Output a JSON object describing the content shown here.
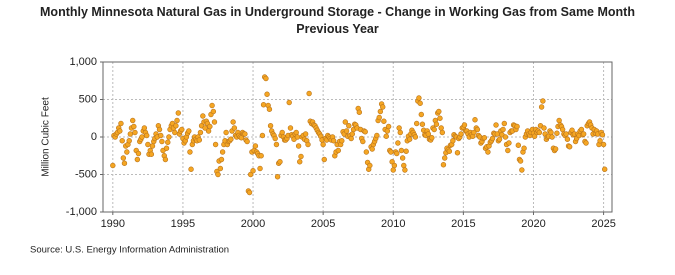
{
  "chart_data": {
    "type": "scatter",
    "title": "Monthly Minnesota Natural Gas in Underground Storage - Change in Working Gas from Same Month Previous Year",
    "y_label": "Million Cubic Feet",
    "source": "Source: U.S. Energy Information Administration",
    "xlim": [
      1989.3,
      2025.6
    ],
    "ylim": [
      -1000,
      1000
    ],
    "xticks": [
      1990,
      1995,
      2000,
      2005,
      2010,
      2015,
      2020,
      2025
    ],
    "yticks": [
      {
        "value": 1000,
        "label": "1,000"
      },
      500,
      0,
      -500,
      {
        "value": -1000,
        "label": "-1,000"
      }
    ],
    "grid": true,
    "color": "#f5a623",
    "edge_color": "#b9741c",
    "x": [
      1990,
      1990.08,
      1990.17,
      1990.25,
      1990.33,
      1990.42,
      1990.5,
      1990.58,
      1990.67,
      1990.75,
      1990.83,
      1990.92,
      1991,
      1991.08,
      1991.17,
      1991.25,
      1991.33,
      1991.42,
      1991.5,
      1991.58,
      1991.67,
      1991.75,
      1991.83,
      1991.92,
      1992,
      1992.08,
      1992.17,
      1992.25,
      1992.33,
      1992.42,
      1992.5,
      1992.58,
      1992.67,
      1992.75,
      1992.83,
      1992.92,
      1993,
      1993.08,
      1993.17,
      1993.25,
      1993.33,
      1993.42,
      1993.5,
      1993.58,
      1993.67,
      1993.75,
      1993.83,
      1993.92,
      1994,
      1994.08,
      1994.17,
      1994.25,
      1994.33,
      1994.42,
      1994.5,
      1994.58,
      1994.67,
      1994.75,
      1994.83,
      1994.92,
      1995,
      1995.08,
      1995.17,
      1995.25,
      1995.33,
      1995.42,
      1995.5,
      1995.58,
      1995.67,
      1995.75,
      1995.83,
      1995.92,
      1996,
      1996.08,
      1996.17,
      1996.25,
      1996.33,
      1996.42,
      1996.5,
      1996.58,
      1996.67,
      1996.75,
      1996.83,
      1996.92,
      1997,
      1997.08,
      1997.17,
      1997.25,
      1997.33,
      1997.42,
      1997.5,
      1997.58,
      1997.67,
      1997.75,
      1997.83,
      1997.92,
      1998,
      1998.08,
      1998.17,
      1998.25,
      1998.33,
      1998.42,
      1998.5,
      1998.58,
      1998.67,
      1998.75,
      1998.83,
      1998.92,
      1999,
      1999.08,
      1999.17,
      1999.25,
      1999.33,
      1999.42,
      1999.5,
      1999.58,
      1999.67,
      1999.75,
      1999.83,
      1999.92,
      2000,
      2000.08,
      2000.17,
      2000.25,
      2000.33,
      2000.42,
      2000.5,
      2000.58,
      2000.67,
      2000.75,
      2000.83,
      2000.92,
      2001,
      2001.08,
      2001.17,
      2001.25,
      2001.33,
      2001.42,
      2001.5,
      2001.58,
      2001.67,
      2001.75,
      2001.83,
      2001.92,
      2002,
      2002.08,
      2002.17,
      2002.25,
      2002.33,
      2002.42,
      2002.5,
      2002.58,
      2002.67,
      2002.75,
      2002.83,
      2002.92,
      2003,
      2003.08,
      2003.17,
      2003.25,
      2003.33,
      2003.42,
      2003.5,
      2003.58,
      2003.67,
      2003.75,
      2003.83,
      2003.92,
      2004,
      2004.08,
      2004.17,
      2004.25,
      2004.33,
      2004.42,
      2004.5,
      2004.58,
      2004.67,
      2004.75,
      2004.83,
      2004.92,
      2005,
      2005.08,
      2005.17,
      2005.25,
      2005.33,
      2005.42,
      2005.5,
      2005.58,
      2005.67,
      2005.75,
      2005.83,
      2005.92,
      2006,
      2006.08,
      2006.17,
      2006.25,
      2006.33,
      2006.42,
      2006.5,
      2006.58,
      2006.67,
      2006.75,
      2006.83,
      2006.92,
      2007,
      2007.08,
      2007.17,
      2007.25,
      2007.33,
      2007.42,
      2007.5,
      2007.58,
      2007.67,
      2007.75,
      2007.83,
      2007.92,
      2008,
      2008.08,
      2008.17,
      2008.25,
      2008.33,
      2008.42,
      2008.5,
      2008.58,
      2008.67,
      2008.75,
      2008.83,
      2008.92,
      2009,
      2009.08,
      2009.17,
      2009.25,
      2009.33,
      2009.42,
      2009.5,
      2009.58,
      2009.67,
      2009.75,
      2009.83,
      2009.92,
      2010,
      2010.08,
      2010.17,
      2010.25,
      2010.33,
      2010.42,
      2010.5,
      2010.58,
      2010.67,
      2010.75,
      2010.83,
      2010.92,
      2011,
      2011.08,
      2011.17,
      2011.25,
      2011.33,
      2011.42,
      2011.5,
      2011.58,
      2011.67,
      2011.75,
      2011.83,
      2011.92,
      2012,
      2012.08,
      2012.17,
      2012.25,
      2012.33,
      2012.42,
      2012.5,
      2012.58,
      2012.67,
      2012.75,
      2012.83,
      2012.92,
      2013,
      2013.08,
      2013.17,
      2013.25,
      2013.33,
      2013.42,
      2013.5,
      2013.58,
      2013.67,
      2013.75,
      2013.83,
      2013.92,
      2014,
      2014.08,
      2014.17,
      2014.25,
      2014.33,
      2014.42,
      2014.5,
      2014.58,
      2014.67,
      2014.75,
      2014.83,
      2014.92,
      2015,
      2015.08,
      2015.17,
      2015.25,
      2015.33,
      2015.42,
      2015.5,
      2015.58,
      2015.67,
      2015.75,
      2015.83,
      2015.92,
      2016,
      2016.08,
      2016.17,
      2016.25,
      2016.33,
      2016.42,
      2016.5,
      2016.58,
      2016.67,
      2016.75,
      2016.83,
      2016.92,
      2017,
      2017.08,
      2017.17,
      2017.25,
      2017.33,
      2017.42,
      2017.5,
      2017.58,
      2017.67,
      2017.75,
      2017.83,
      2017.92,
      2018,
      2018.08,
      2018.17,
      2018.25,
      2018.33,
      2018.42,
      2018.5,
      2018.58,
      2018.67,
      2018.75,
      2018.83,
      2018.92,
      2019,
      2019.08,
      2019.17,
      2019.25,
      2019.33,
      2019.42,
      2019.5,
      2019.58,
      2019.67,
      2019.75,
      2019.83,
      2019.92,
      2020,
      2020.08,
      2020.17,
      2020.25,
      2020.33,
      2020.42,
      2020.5,
      2020.58,
      2020.67,
      2020.75,
      2020.83,
      2020.92,
      2021,
      2021.08,
      2021.17,
      2021.25,
      2021.33,
      2021.42,
      2021.5,
      2021.58,
      2021.67,
      2021.75,
      2021.83,
      2021.92,
      2022,
      2022.08,
      2022.17,
      2022.25,
      2022.33,
      2022.42,
      2022.5,
      2022.58,
      2022.67,
      2022.75,
      2022.83,
      2022.92,
      2023,
      2023.08,
      2023.17,
      2023.25,
      2023.33,
      2023.42,
      2023.5,
      2023.58,
      2023.67,
      2023.75,
      2023.83,
      2023.92,
      2024,
      2024.08,
      2024.17,
      2024.25,
      2024.33,
      2024.42,
      2024.5,
      2024.58,
      2024.67,
      2024.75,
      2024.83,
      2024.92,
      2025,
      2025.08
    ],
    "values": [
      -380,
      20,
      0,
      40,
      60,
      120,
      80,
      180,
      -50,
      -280,
      -350,
      -120,
      -200,
      -100,
      -50,
      40,
      120,
      220,
      140,
      60,
      -180,
      -300,
      -220,
      -60,
      -30,
      0,
      80,
      120,
      60,
      20,
      -100,
      -230,
      -180,
      -230,
      -120,
      -60,
      -20,
      40,
      0,
      150,
      100,
      20,
      -60,
      -180,
      -250,
      -300,
      -150,
      -70,
      0,
      100,
      150,
      180,
      120,
      60,
      150,
      220,
      320,
      40,
      80,
      100,
      -20,
      -80,
      -50,
      0,
      50,
      80,
      -200,
      -430,
      -100,
      -50,
      0,
      -30,
      -50,
      0,
      -40,
      60,
      150,
      280,
      200,
      120,
      210,
      180,
      80,
      140,
      300,
      420,
      340,
      200,
      -100,
      -460,
      -500,
      -320,
      -420,
      -300,
      -200,
      -100,
      -50,
      60,
      -100,
      -60,
      -50,
      -30,
      80,
      200,
      120,
      20,
      0,
      60,
      20,
      0,
      -10,
      60,
      40,
      40,
      -40,
      -60,
      -720,
      -740,
      -500,
      -200,
      -450,
      -180,
      -120,
      -200,
      -220,
      -250,
      -420,
      -250,
      20,
      430,
      800,
      780,
      570,
      420,
      370,
      150,
      80,
      40,
      20,
      -20,
      -100,
      -530,
      -350,
      -330,
      20,
      60,
      0,
      -40,
      -40,
      -20,
      20,
      460,
      120,
      30,
      10,
      -30,
      40,
      60,
      0,
      -120,
      -330,
      -260,
      0,
      20,
      -30,
      40,
      -50,
      -100,
      580,
      210,
      180,
      200,
      160,
      150,
      120,
      90,
      60,
      40,
      10,
      -40,
      -100,
      -300,
      -20,
      -40,
      20,
      0,
      -20,
      -40,
      0,
      -50,
      -250,
      -200,
      -100,
      -180,
      -60,
      -100,
      -50,
      70,
      40,
      200,
      80,
      10,
      150,
      20,
      -20,
      40,
      100,
      170,
      160,
      120,
      380,
      330,
      100,
      -20,
      -60,
      80,
      70,
      -200,
      -340,
      -430,
      -380,
      -130,
      -160,
      -100,
      -60,
      -20,
      20,
      220,
      260,
      340,
      440,
      400,
      210,
      100,
      10,
      80,
      140,
      -180,
      -200,
      -330,
      -440,
      -380,
      -200,
      -220,
      -80,
      120,
      60,
      -180,
      -280,
      -380,
      -440,
      -190,
      -50,
      10,
      -30,
      40,
      90,
      60,
      30,
      0,
      180,
      480,
      520,
      450,
      300,
      170,
      90,
      30,
      20,
      80,
      40,
      -30,
      -40,
      -10,
      120,
      100,
      220,
      170,
      320,
      340,
      250,
      120,
      60,
      -370,
      -280,
      -210,
      -150,
      -170,
      -190,
      -110,
      -100,
      -50,
      30,
      10,
      0,
      -210,
      -20,
      0,
      40,
      120,
      130,
      160,
      80,
      80,
      40,
      0,
      60,
      30,
      10,
      60,
      230,
      120,
      100,
      20,
      0,
      -80,
      -60,
      -20,
      -10,
      -150,
      -130,
      -200,
      -120,
      -70,
      -50,
      -20,
      50,
      40,
      160,
      40,
      -50,
      -30,
      80,
      30,
      100,
      180,
      0,
      -100,
      -180,
      -80,
      60,
      80,
      80,
      160,
      150,
      100,
      140,
      -110,
      -300,
      -320,
      -440,
      -200,
      -150,
      0,
      40,
      80,
      40,
      20,
      60,
      100,
      50,
      10,
      100,
      60,
      80,
      60,
      150,
      400,
      480,
      120,
      40,
      -30,
      0,
      10,
      80,
      60,
      0,
      -150,
      -180,
      -160,
      50,
      140,
      220,
      160,
      140,
      100,
      40,
      20,
      40,
      -30,
      -120,
      -130,
      60,
      90,
      30,
      40,
      -60,
      -20,
      40,
      20,
      80,
      100,
      30,
      40,
      -60,
      -80,
      150,
      180,
      200,
      160,
      120,
      40,
      100,
      50,
      80,
      40,
      -100,
      -50,
      60,
      30,
      -100,
      -430
    ]
  }
}
